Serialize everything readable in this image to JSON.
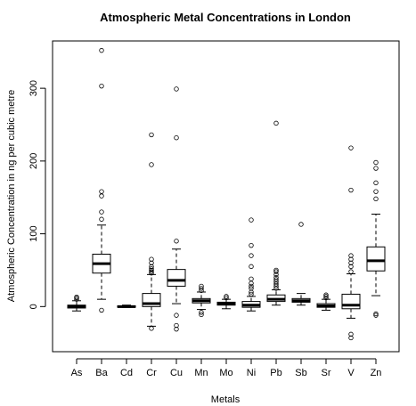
{
  "chart_data": {
    "type": "box",
    "title": "Atmospheric Metal Concentrations in London",
    "xlabel": "Metals",
    "ylabel": "Atmospheric Concentration in ng per cubic metre",
    "ylim": [
      -62,
      365
    ],
    "yticks": [
      0,
      100,
      200,
      300
    ],
    "grid": false,
    "categories": [
      "As",
      "Ba",
      "Cd",
      "Cr",
      "Cu",
      "Mn",
      "Mo",
      "Ni",
      "Pb",
      "Sb",
      "Sr",
      "V",
      "Zn"
    ],
    "boxes": [
      {
        "name": "As",
        "whisker_low": -6,
        "q1": -2,
        "median": 0,
        "q3": 2,
        "whisker_high": 8,
        "outliers": [
          10,
          12,
          13
        ]
      },
      {
        "name": "Ba",
        "whisker_low": 10,
        "q1": 46,
        "median": 59,
        "q3": 72,
        "whisker_high": 112,
        "outliers": [
          -5,
          120,
          130,
          152,
          158,
          303,
          352
        ]
      },
      {
        "name": "Cd",
        "whisker_low": -1,
        "q1": -1,
        "median": 0,
        "q3": 1,
        "whisker_high": 2,
        "outliers": []
      },
      {
        "name": "Cr",
        "whisker_low": -27,
        "q1": 0,
        "median": 4,
        "q3": 18,
        "whisker_high": 44,
        "outliers": [
          -30,
          46,
          48,
          50,
          52,
          55,
          60,
          65,
          195,
          236
        ]
      },
      {
        "name": "Cu",
        "whisker_low": 4,
        "q1": 28,
        "median": 36,
        "q3": 51,
        "whisker_high": 79,
        "outliers": [
          -12,
          -26,
          -31,
          90,
          232,
          299
        ]
      },
      {
        "name": "Mn",
        "whisker_low": -4,
        "q1": 5,
        "median": 8,
        "q3": 11,
        "whisker_high": 20,
        "outliers": [
          -8,
          -11,
          22,
          25,
          28
        ]
      },
      {
        "name": "Mo",
        "whisker_low": -3,
        "q1": 2,
        "median": 4,
        "q3": 6,
        "whisker_high": 10,
        "outliers": [
          12,
          14
        ]
      },
      {
        "name": "Ni",
        "whisker_low": -6,
        "q1": -1,
        "median": 2,
        "q3": 7,
        "whisker_high": 14,
        "outliers": [
          17,
          20,
          25,
          28,
          32,
          38,
          55,
          70,
          84,
          119
        ]
      },
      {
        "name": "Pb",
        "whisker_low": 2,
        "q1": 7,
        "median": 10,
        "q3": 16,
        "whisker_high": 23,
        "outliers": [
          25,
          28,
          31,
          34,
          37,
          40,
          44,
          48,
          50,
          252
        ]
      },
      {
        "name": "Sb",
        "whisker_low": 2,
        "q1": 6,
        "median": 8,
        "q3": 11,
        "whisker_high": 18,
        "outliers": [
          113
        ]
      },
      {
        "name": "Sr",
        "whisker_low": -5,
        "q1": -1,
        "median": 1,
        "q3": 4,
        "whisker_high": 10,
        "outliers": [
          12,
          14,
          16
        ]
      },
      {
        "name": "V",
        "whisker_low": -16,
        "q1": -3,
        "median": 2,
        "q3": 17,
        "whisker_high": 45,
        "outliers": [
          -38,
          -43,
          48,
          55,
          60,
          65,
          70,
          160,
          218
        ]
      },
      {
        "name": "Zn",
        "whisker_low": 15,
        "q1": 49,
        "median": 63,
        "q3": 82,
        "whisker_high": 127,
        "outliers": [
          -10,
          -12,
          148,
          158,
          170,
          190,
          198
        ]
      }
    ]
  }
}
